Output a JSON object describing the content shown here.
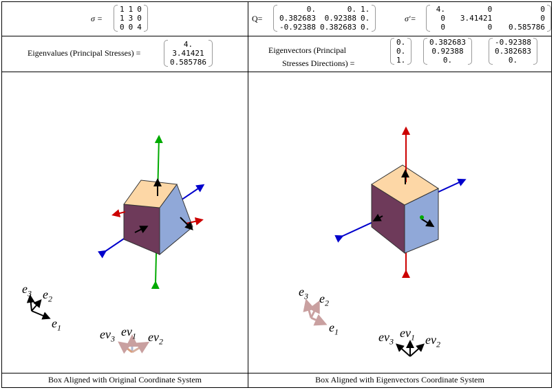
{
  "sigma": {
    "label": "σ =",
    "rows": [
      [
        "1",
        "1",
        "0"
      ],
      [
        "1",
        "3",
        "0"
      ],
      [
        "0",
        "0",
        "4"
      ]
    ]
  },
  "q": {
    "label": "Q=",
    "rows": [
      [
        "0.",
        "0.",
        "1."
      ],
      [
        "0.382683",
        "0.92388",
        "0."
      ],
      [
        "-0.92388",
        "0.382683",
        "0."
      ]
    ]
  },
  "sigma_prime": {
    "label": "σ'=",
    "rows": [
      [
        "4.",
        "0",
        "0"
      ],
      [
        "0",
        "3.41421",
        "0"
      ],
      [
        "0",
        "0",
        "0.585786"
      ]
    ]
  },
  "eigenvalues": {
    "label": "Eigenvalues (Principal Stresses) =",
    "values": [
      "4.",
      "3.41421",
      "0.585786"
    ]
  },
  "eigenvectors": {
    "label_line1": "Eigenvectors (Principal",
    "label_line2": "Stresses Directions) =",
    "vectors": [
      [
        "0.",
        "0.",
        "1."
      ],
      [
        "0.382683",
        "0.92388",
        "0."
      ],
      [
        "-0.92388",
        "0.382683",
        "0."
      ]
    ]
  },
  "left_panel": {
    "caption": "Box Aligned with Original Coordinate System",
    "axes": {
      "e1": "e",
      "e1_sub": "1",
      "e2": "e",
      "e2_sub": "2",
      "e3": "e",
      "e3_sub": "3",
      "ev1": "ev",
      "ev1_sub": "1",
      "ev2": "ev",
      "ev2_sub": "2",
      "ev3": "ev",
      "ev3_sub": "3"
    }
  },
  "right_panel": {
    "caption": "Box Aligned with Eigenvectors Coordinate System"
  },
  "colors": {
    "top_face": "#fdd7a6",
    "front_face": "#6e3a5a",
    "side_face": "#90a8d8",
    "x_axis": "#0000cc",
    "y_axis": "#cc0000",
    "z_axis": "#00aa00"
  }
}
